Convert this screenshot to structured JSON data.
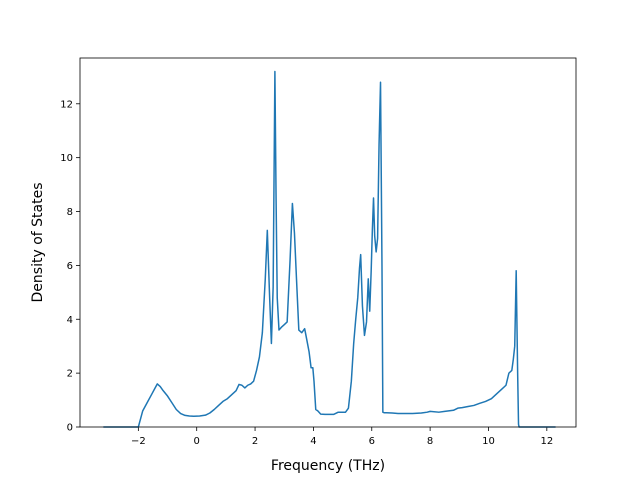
{
  "chart_data": {
    "type": "line",
    "title": "",
    "xlabel": "Frequency (THz)",
    "ylabel": "Density of States",
    "xlim": [
      -4.0,
      13.0
    ],
    "ylim": [
      0,
      13.7
    ],
    "grid": false,
    "legend": "none",
    "line_color": "#1f77b4",
    "xticks": [
      -2,
      0,
      2,
      4,
      6,
      8,
      10,
      12
    ],
    "yticks": [
      0,
      2,
      4,
      6,
      8,
      10,
      12
    ],
    "series": [
      {
        "x": [
          -3.2,
          -2.1,
          -2.0,
          -1.95,
          -1.85,
          -1.7,
          -1.55,
          -1.45,
          -1.35,
          -1.25,
          -1.15,
          -1.0,
          -0.85,
          -0.7,
          -0.55,
          -0.4,
          -0.25,
          -0.1,
          0.1,
          0.3,
          0.45,
          0.6,
          0.75,
          0.9,
          1.05,
          1.2,
          1.35,
          1.45,
          1.55,
          1.65,
          1.75,
          1.85,
          1.95,
          2.05,
          2.15,
          2.25,
          2.35,
          2.42,
          2.5,
          2.56,
          2.62,
          2.68,
          2.72,
          2.76,
          2.82,
          2.9,
          3.0,
          3.1,
          3.2,
          3.28,
          3.35,
          3.42,
          3.5,
          3.6,
          3.7,
          3.78,
          3.85,
          3.92,
          3.98,
          4.02,
          4.08,
          4.15,
          4.25,
          4.4,
          4.55,
          4.7,
          4.85,
          5.0,
          5.1,
          5.2,
          5.3,
          5.38,
          5.45,
          5.52,
          5.58,
          5.62,
          5.68,
          5.75,
          5.82,
          5.88,
          5.93,
          5.98,
          6.02,
          6.06,
          6.1,
          6.15,
          6.2,
          6.25,
          6.3,
          6.35,
          6.38,
          6.42,
          6.46,
          6.5,
          6.7,
          6.9,
          7.1,
          7.4,
          7.7,
          7.9,
          8.0,
          8.3,
          8.5,
          8.8,
          8.95,
          9.1,
          9.3,
          9.5,
          9.7,
          9.9,
          10.1,
          10.3,
          10.45,
          10.6,
          10.7,
          10.8,
          10.85,
          10.9,
          10.95,
          11.0,
          11.03,
          11.05,
          11.5,
          12.3
        ],
        "values": [
          0,
          0,
          0,
          0.2,
          0.6,
          0.9,
          1.2,
          1.4,
          1.6,
          1.5,
          1.35,
          1.15,
          0.9,
          0.65,
          0.5,
          0.43,
          0.41,
          0.4,
          0.41,
          0.44,
          0.52,
          0.65,
          0.8,
          0.95,
          1.05,
          1.2,
          1.35,
          1.58,
          1.55,
          1.45,
          1.55,
          1.6,
          1.7,
          2.1,
          2.6,
          3.5,
          5.5,
          7.3,
          4.8,
          3.1,
          5.2,
          13.2,
          8.5,
          4.8,
          3.6,
          3.7,
          3.8,
          3.9,
          6.2,
          8.3,
          7.2,
          5.5,
          3.6,
          3.5,
          3.65,
          3.2,
          2.8,
          2.2,
          2.2,
          1.7,
          0.65,
          0.6,
          0.48,
          0.47,
          0.47,
          0.47,
          0.55,
          0.55,
          0.55,
          0.7,
          1.7,
          3.1,
          4.0,
          4.8,
          5.9,
          6.4,
          4.5,
          3.4,
          3.9,
          5.5,
          4.3,
          5.8,
          7.3,
          8.5,
          7.1,
          6.5,
          7.0,
          10.5,
          12.8,
          6.0,
          0.55,
          0.53,
          0.53,
          0.53,
          0.52,
          0.5,
          0.5,
          0.5,
          0.52,
          0.55,
          0.58,
          0.55,
          0.58,
          0.62,
          0.7,
          0.72,
          0.76,
          0.8,
          0.88,
          0.95,
          1.05,
          1.25,
          1.4,
          1.55,
          2.0,
          2.1,
          2.5,
          3.0,
          5.8,
          2.0,
          0.1,
          0.0,
          0.0,
          0.0
        ]
      }
    ]
  }
}
